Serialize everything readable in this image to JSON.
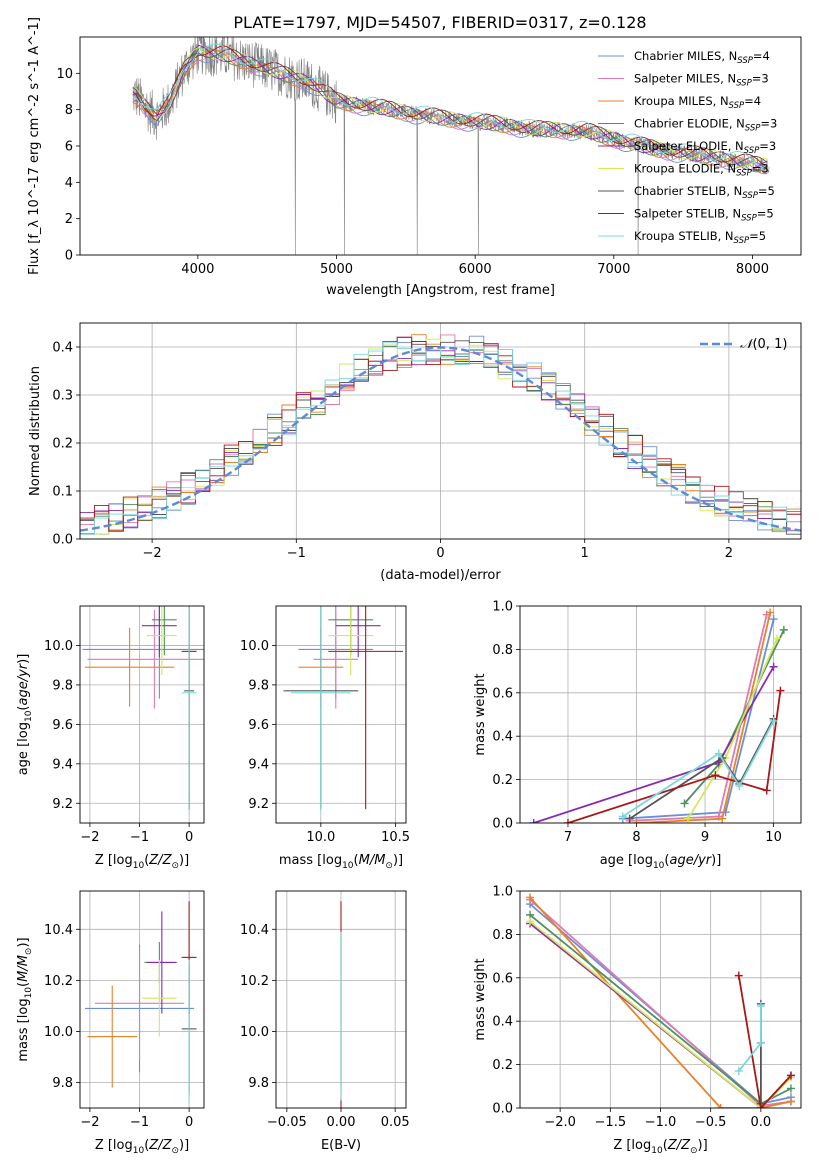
{
  "title": "PLATE=1797, MJD=54507, FIBERID=0317, z=0.128",
  "colors": {
    "Chabrier MILES": "#6a8fd8",
    "Salpeter MILES": "#e07ab4",
    "Kroupa MILES": "#e8822a",
    "Chabrier ELODIE": "#4f8f62",
    "Salpeter ELODIE": "#8a2ab0",
    "Kroupa ELODIE": "#d4e85a",
    "Chabrier STELIB": "#555555",
    "Salpeter STELIB": "#a81818",
    "Kroupa STELIB": "#7ad8dc",
    "data": "#808080",
    "normal": "#5b8bd8"
  },
  "legend": [
    {
      "model": "Chabrier MILES",
      "n": "4"
    },
    {
      "model": "Salpeter MILES",
      "n": "3"
    },
    {
      "model": "Kroupa MILES",
      "n": "4"
    },
    {
      "model": "Chabrier ELODIE",
      "n": "3"
    },
    {
      "model": "Salpeter ELODIE",
      "n": "3"
    },
    {
      "model": "Kroupa ELODIE",
      "n": "3"
    },
    {
      "model": "Chabrier STELIB",
      "n": "5"
    },
    {
      "model": "Salpeter STELIB",
      "n": "5"
    },
    {
      "model": "Kroupa STELIB",
      "n": "5"
    }
  ],
  "chart_data": [
    {
      "type": "line",
      "name": "spectrum",
      "xlabel": "wavelength [Angstrom, rest frame]",
      "ylabel": "Flux [f_λ 10^-17 erg cm^-2 s^-1 A^-1]",
      "xlim": [
        3150,
        8350
      ],
      "ylim": [
        0,
        12
      ],
      "xticks": [
        4000,
        5000,
        6000,
        7000,
        8000
      ],
      "yticks": [
        0,
        2,
        4,
        6,
        8,
        10
      ],
      "model_continuum": {
        "x": [
          3550,
          3620,
          3700,
          3800,
          3900,
          4000,
          4100,
          4200,
          4400,
          4600,
          4800,
          5000,
          5200,
          5400,
          5600,
          5800,
          6000,
          6200,
          6400,
          6600,
          6800,
          7000,
          7200,
          7400,
          7600,
          7800,
          8000,
          8100
        ],
        "y": [
          8.8,
          8.2,
          7.6,
          8.4,
          10.2,
          11.2,
          11.1,
          11.0,
          10.5,
          10.0,
          9.5,
          8.5,
          8.2,
          8.0,
          7.7,
          7.5,
          7.3,
          7.2,
          6.9,
          6.9,
          6.8,
          6.4,
          6.0,
          5.7,
          5.5,
          5.3,
          5.0,
          4.9
        ]
      }
    },
    {
      "type": "bar",
      "name": "residuals",
      "xlabel": "(data-model)/error",
      "ylabel": "Normed distribution",
      "xlim": [
        -2.5,
        2.5
      ],
      "ylim": [
        0,
        0.45
      ],
      "xticks": [
        -2,
        -1,
        0,
        1,
        2
      ],
      "yticks": [
        0.0,
        0.1,
        0.2,
        0.3,
        0.4
      ],
      "normal_label": "N(0,1)"
    },
    {
      "type": "scatter",
      "name": "age-vs-Z",
      "xlabel": "Z [log10(Z/Z⊙)]",
      "ylabel": "age  [log10(age/yr)]",
      "xlim": [
        -2.2,
        0.3
      ],
      "ylim": [
        9.1,
        10.2
      ],
      "xticks": [
        -2,
        -1,
        0
      ],
      "yticks": [
        9.2,
        9.4,
        9.6,
        9.8,
        10.0
      ],
      "points": [
        {
          "model": "Chabrier MILES",
          "x": -0.6,
          "xerr": 1.55,
          "y": 9.98,
          "yerr": 0.25
        },
        {
          "model": "Salpeter MILES",
          "x": -0.7,
          "xerr": 1.35,
          "y": 9.93,
          "yerr": 0.25
        },
        {
          "model": "Kroupa MILES",
          "x": -1.2,
          "xerr": 0.9,
          "y": 9.89,
          "yerr": 0.2
        },
        {
          "model": "Chabrier ELODIE",
          "x": -0.5,
          "xerr": 0.25,
          "y": 10.13,
          "yerr": 0.18
        },
        {
          "model": "Salpeter ELODIE",
          "x": -0.6,
          "xerr": 0.35,
          "y": 10.1,
          "yerr": 0.16
        },
        {
          "model": "Kroupa ELODIE",
          "x": -0.55,
          "xerr": 0.3,
          "y": 10.05,
          "yerr": 0.2
        },
        {
          "model": "Chabrier STELIB",
          "x": 0.0,
          "xerr": 0.1,
          "y": 9.77,
          "yerr": 0.6
        },
        {
          "model": "Salpeter STELIB",
          "x": 0.0,
          "xerr": 0.15,
          "y": 9.97,
          "yerr": 0.8
        },
        {
          "model": "Kroupa STELIB",
          "x": 0.0,
          "xerr": 0.15,
          "y": 9.76,
          "yerr": 0.6
        }
      ]
    },
    {
      "type": "scatter",
      "name": "age-vs-mass",
      "xlabel": "mass [log10(M/M⊙)]",
      "ylabel": "",
      "xlim": [
        9.7,
        10.57
      ],
      "ylim": [
        9.1,
        10.2
      ],
      "xticks": [
        10.0,
        10.5
      ],
      "yticks": [
        9.2,
        9.4,
        9.6,
        9.8,
        10.0
      ],
      "points": [
        {
          "model": "Chabrier MILES",
          "x": 10.1,
          "xerr": 0.25,
          "y": 9.98,
          "yerr": 0.25
        },
        {
          "model": "Salpeter MILES",
          "x": 10.1,
          "xerr": 0.15,
          "y": 9.93,
          "yerr": 0.25
        },
        {
          "model": "Kroupa MILES",
          "x": 10.0,
          "xerr": 0.15,
          "y": 9.89,
          "yerr": 0.2
        },
        {
          "model": "Chabrier ELODIE",
          "x": 10.2,
          "xerr": 0.15,
          "y": 10.13,
          "yerr": 0.18
        },
        {
          "model": "Salpeter ELODIE",
          "x": 10.25,
          "xerr": 0.15,
          "y": 10.1,
          "yerr": 0.16
        },
        {
          "model": "Kroupa ELODIE",
          "x": 10.2,
          "xerr": 0.15,
          "y": 10.05,
          "yerr": 0.2
        },
        {
          "model": "Chabrier STELIB",
          "x": 10.0,
          "xerr": 0.25,
          "y": 9.77,
          "yerr": 0.6
        },
        {
          "model": "Salpeter STELIB",
          "x": 10.3,
          "xerr": 0.25,
          "y": 9.97,
          "yerr": 0.8
        },
        {
          "model": "Kroupa STELIB",
          "x": 10.0,
          "xerr": 0.2,
          "y": 9.76,
          "yerr": 0.6
        }
      ]
    },
    {
      "type": "line",
      "name": "mass-weight-vs-age",
      "xlabel": "age  [log10(age/yr)]",
      "ylabel": "mass weight",
      "xlim": [
        6.3,
        10.4
      ],
      "ylim": [
        0,
        1
      ],
      "xticks": [
        7,
        8,
        9,
        10
      ],
      "yticks": [
        0.0,
        0.2,
        0.4,
        0.6,
        0.8,
        1.0
      ],
      "series": [
        {
          "model": "Chabrier MILES",
          "x": [
            7.8,
            9.3,
            10.0
          ],
          "y": [
            0.02,
            0.05,
            0.94
          ]
        },
        {
          "model": "Salpeter MILES",
          "x": [
            7.9,
            9.2,
            9.9
          ],
          "y": [
            0.01,
            0.03,
            0.96
          ]
        },
        {
          "model": "Kroupa MILES",
          "x": [
            8.0,
            9.25,
            9.95
          ],
          "y": [
            0.0,
            0.02,
            0.97
          ]
        },
        {
          "model": "Chabrier ELODIE",
          "x": [
            8.7,
            9.2,
            10.15
          ],
          "y": [
            0.09,
            0.27,
            0.89
          ]
        },
        {
          "model": "Salpeter ELODIE",
          "x": [
            6.5,
            9.2,
            10.0
          ],
          "y": [
            0.0,
            0.28,
            0.72
          ]
        },
        {
          "model": "Kroupa ELODIE",
          "x": [
            8.75,
            9.3,
            10.05
          ],
          "y": [
            0.02,
            0.3,
            0.85
          ]
        },
        {
          "model": "Chabrier STELIB",
          "x": [
            7.9,
            9.25,
            9.5,
            10.0
          ],
          "y": [
            0.02,
            0.3,
            0.18,
            0.48
          ]
        },
        {
          "model": "Salpeter STELIB",
          "x": [
            7.0,
            9.15,
            9.9,
            10.1
          ],
          "y": [
            0.0,
            0.22,
            0.15,
            0.61
          ]
        },
        {
          "model": "Kroupa STELIB",
          "x": [
            7.8,
            9.2,
            9.5,
            10.0
          ],
          "y": [
            0.03,
            0.32,
            0.17,
            0.47
          ]
        }
      ]
    },
    {
      "type": "scatter",
      "name": "mass-vs-Z",
      "xlabel": "Z [log10(Z/Z⊙)]",
      "ylabel": "mass [log10(M/M⊙)]",
      "xlim": [
        -2.2,
        0.3
      ],
      "ylim": [
        9.7,
        10.55
      ],
      "xticks": [
        -2,
        -1,
        0
      ],
      "yticks": [
        9.8,
        10.0,
        10.2,
        10.4
      ],
      "points": [
        {
          "model": "Chabrier MILES",
          "x": -1.0,
          "xerr": 1.1,
          "y": 10.09,
          "yerr": 0.25
        },
        {
          "model": "Salpeter MILES",
          "x": -1.0,
          "xerr": 0.9,
          "y": 10.11,
          "yerr": 0.22
        },
        {
          "model": "Kroupa MILES",
          "x": -1.55,
          "xerr": 0.5,
          "y": 9.98,
          "yerr": 0.2
        },
        {
          "model": "Chabrier ELODIE",
          "x": -0.6,
          "xerr": 0.3,
          "y": 10.27,
          "yerr": 0.08
        },
        {
          "model": "Salpeter ELODIE",
          "x": -0.55,
          "xerr": 0.3,
          "y": 10.27,
          "yerr": 0.2
        },
        {
          "model": "Kroupa ELODIE",
          "x": -0.6,
          "xerr": 0.35,
          "y": 10.13,
          "yerr": 0.15
        },
        {
          "model": "Chabrier STELIB",
          "x": 0.0,
          "xerr": 0.15,
          "y": 10.01,
          "yerr": 0.25
        },
        {
          "model": "Salpeter STELIB",
          "x": 0.0,
          "xerr": 0.15,
          "y": 10.29,
          "yerr": 0.22
        },
        {
          "model": "Kroupa STELIB",
          "x": 0.0,
          "xerr": 0.15,
          "y": 10.0,
          "yerr": 0.28
        }
      ]
    },
    {
      "type": "scatter",
      "name": "mass-vs-ebv",
      "xlabel": "E(B-V)",
      "ylabel": "",
      "xlim": [
        -0.06,
        0.06
      ],
      "ylim": [
        9.7,
        10.55
      ],
      "xticks": [
        -0.05,
        0.0,
        0.05
      ],
      "yticks": [
        9.8,
        10.0,
        10.2,
        10.4
      ],
      "points": [
        {
          "model": "Salpeter STELIB",
          "x": 0.0,
          "xerr": 0.0,
          "y": 10.1,
          "yerr": 0.41
        },
        {
          "model": "Chabrier MILES",
          "x": 0.0,
          "xerr": 0.0,
          "y": 10.08,
          "yerr": 0.3
        },
        {
          "model": "Kroupa STELIB",
          "x": 0.0,
          "xerr": 0.0,
          "y": 10.06,
          "yerr": 0.33
        }
      ]
    },
    {
      "type": "line",
      "name": "mass-weight-vs-Z",
      "xlabel": "Z [log10(Z/Z⊙)]",
      "ylabel": "mass weight",
      "xlim": [
        -2.4,
        0.4
      ],
      "ylim": [
        0,
        1
      ],
      "xticks": [
        -2.0,
        -1.5,
        -1.0,
        -0.5,
        0.0
      ],
      "yticks": [
        0.0,
        0.2,
        0.4,
        0.6,
        0.8,
        1.0
      ],
      "series": [
        {
          "model": "Chabrier MILES",
          "x": [
            -2.3,
            0.0,
            0.3
          ],
          "y": [
            0.94,
            0.02,
            0.05
          ]
        },
        {
          "model": "Salpeter MILES",
          "x": [
            -2.3,
            0.0,
            0.3
          ],
          "y": [
            0.96,
            0.01,
            0.03
          ]
        },
        {
          "model": "Kroupa MILES",
          "x": [
            -2.3,
            -0.4,
            0.0,
            0.3
          ],
          "y": [
            0.97,
            0.0,
            0.0,
            0.03
          ]
        },
        {
          "model": "Chabrier ELODIE",
          "x": [
            -2.3,
            0.0,
            0.3
          ],
          "y": [
            0.89,
            0.02,
            0.09
          ]
        },
        {
          "model": "Salpeter ELODIE",
          "x": [
            -2.3,
            0.0,
            0.3
          ],
          "y": [
            0.85,
            0.0,
            0.15
          ]
        },
        {
          "model": "Kroupa ELODIE",
          "x": [
            -2.3,
            0.0,
            0.3
          ],
          "y": [
            0.86,
            0.0,
            0.14
          ]
        },
        {
          "model": "Chabrier STELIB",
          "x": [
            0.0,
            0.0,
            0.0
          ],
          "y": [
            0.48,
            0.3,
            0.02
          ]
        },
        {
          "model": "Salpeter STELIB",
          "x": [
            -0.22,
            0.0,
            0.3
          ],
          "y": [
            0.61,
            0.0,
            0.15
          ]
        },
        {
          "model": "Kroupa STELIB",
          "x": [
            -0.22,
            0.0,
            0.0
          ],
          "y": [
            0.17,
            0.3,
            0.47
          ]
        }
      ]
    }
  ]
}
